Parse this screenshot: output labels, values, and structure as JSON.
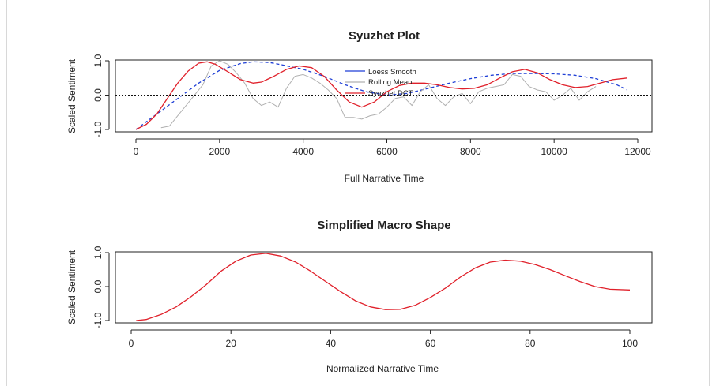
{
  "chart_data": [
    {
      "type": "line",
      "title": "Syuzhet Plot",
      "xlabel": "Full Narrative Time",
      "ylabel": "Scaled Sentiment",
      "xlim": [
        0,
        12000
      ],
      "ylim": [
        -1.05,
        1.05
      ],
      "xticks": [
        "0",
        "2000",
        "4000",
        "6000",
        "8000",
        "10000",
        "12000"
      ],
      "yticks": [
        "-1.0",
        "0.0",
        "1.0"
      ],
      "reference_line": 0,
      "legend": {
        "placement": "top-center",
        "entries": [
          {
            "label": "Loess Smooth",
            "color": "#1f3fd6"
          },
          {
            "label": "Rolling Mean",
            "color": "#b0b0b0"
          },
          {
            "label": "Syuzhet DCT",
            "color": "#e0202a"
          }
        ]
      },
      "series": [
        {
          "name": "Loess Smooth",
          "color": "#1f3fd6",
          "style": "dashed",
          "x": [
            0,
            500,
            1000,
            1500,
            2000,
            2500,
            2800,
            3200,
            3500,
            4000,
            4500,
            5000,
            5500,
            6000,
            6500,
            7000,
            7500,
            8000,
            8500,
            9000,
            9500,
            10000,
            10500,
            11000,
            11500,
            11750
          ],
          "y": [
            -1.0,
            -0.55,
            -0.1,
            0.35,
            0.72,
            0.92,
            0.97,
            0.95,
            0.88,
            0.75,
            0.55,
            0.3,
            0.1,
            0.0,
            0.05,
            0.2,
            0.35,
            0.48,
            0.58,
            0.63,
            0.63,
            0.62,
            0.58,
            0.48,
            0.3,
            0.15
          ]
        },
        {
          "name": "Rolling Mean",
          "color": "#b0b0b0",
          "style": "solid",
          "x": [
            600,
            800,
            1000,
            1200,
            1400,
            1600,
            1800,
            2000,
            2200,
            2400,
            2600,
            2800,
            3000,
            3200,
            3400,
            3600,
            3800,
            4000,
            4200,
            4400,
            4600,
            4800,
            5000,
            5200,
            5400,
            5600,
            5800,
            6000,
            6200,
            6400,
            6600,
            6800,
            7000,
            7200,
            7400,
            7600,
            7800,
            8000,
            8200,
            8400,
            8600,
            8800,
            9000,
            9200,
            9400,
            9600,
            9800,
            10000,
            10200,
            10400,
            10600,
            10800,
            11000
          ],
          "y": [
            -0.95,
            -0.9,
            -0.6,
            -0.3,
            0.0,
            0.3,
            0.85,
            1.0,
            0.9,
            0.65,
            0.35,
            -0.1,
            -0.3,
            -0.2,
            -0.35,
            0.2,
            0.55,
            0.6,
            0.5,
            0.35,
            0.15,
            -0.1,
            -0.65,
            -0.65,
            -0.7,
            -0.6,
            -0.55,
            -0.35,
            -0.1,
            -0.05,
            -0.3,
            0.1,
            0.3,
            -0.1,
            -0.3,
            -0.05,
            0.05,
            -0.25,
            0.1,
            0.2,
            0.25,
            0.3,
            0.6,
            0.55,
            0.25,
            0.15,
            0.1,
            -0.15,
            0.0,
            0.2,
            -0.15,
            0.1,
            0.25
          ]
        },
        {
          "name": "Syuzhet DCT",
          "color": "#e0202a",
          "style": "solid",
          "x": [
            0,
            250,
            500,
            750,
            1000,
            1250,
            1500,
            1700,
            1900,
            2200,
            2500,
            2800,
            3000,
            3300,
            3600,
            3900,
            4200,
            4500,
            4800,
            5100,
            5400,
            5700,
            6000,
            6300,
            6600,
            6900,
            7200,
            7500,
            7800,
            8100,
            8400,
            8700,
            9000,
            9300,
            9600,
            9900,
            10200,
            10500,
            10800,
            11100,
            11400,
            11750
          ],
          "y": [
            -1.0,
            -0.85,
            -0.55,
            -0.1,
            0.35,
            0.7,
            0.93,
            0.97,
            0.9,
            0.68,
            0.45,
            0.35,
            0.38,
            0.55,
            0.75,
            0.85,
            0.8,
            0.55,
            0.15,
            -0.2,
            -0.35,
            -0.2,
            0.1,
            0.28,
            0.35,
            0.35,
            0.3,
            0.22,
            0.18,
            0.2,
            0.3,
            0.5,
            0.68,
            0.75,
            0.65,
            0.45,
            0.3,
            0.22,
            0.25,
            0.35,
            0.45,
            0.5
          ]
        }
      ]
    },
    {
      "type": "line",
      "title": "Simplified Macro Shape",
      "xlabel": "Normalized Narrative Time",
      "ylabel": "Scaled Sentiment",
      "xlim": [
        0,
        100
      ],
      "ylim": [
        -1.05,
        1.05
      ],
      "xticks": [
        "0",
        "20",
        "40",
        "60",
        "80",
        "100"
      ],
      "yticks": [
        "-1.0",
        "0.0",
        "1.0"
      ],
      "series": [
        {
          "color": "#e0202a",
          "style": "solid",
          "x": [
            1,
            3,
            6,
            9,
            12,
            15,
            18,
            21,
            24,
            27,
            30,
            33,
            36,
            39,
            42,
            45,
            48,
            51,
            54,
            57,
            60,
            63,
            66,
            69,
            72,
            75,
            78,
            81,
            84,
            87,
            90,
            93,
            96,
            100
          ],
          "y": [
            -1.0,
            -0.97,
            -0.82,
            -0.6,
            -0.3,
            0.05,
            0.45,
            0.75,
            0.93,
            0.98,
            0.9,
            0.72,
            0.45,
            0.15,
            -0.15,
            -0.42,
            -0.6,
            -0.68,
            -0.67,
            -0.55,
            -0.32,
            -0.05,
            0.28,
            0.55,
            0.72,
            0.78,
            0.75,
            0.65,
            0.5,
            0.32,
            0.15,
            0.0,
            -0.08,
            -0.1
          ]
        }
      ]
    }
  ]
}
